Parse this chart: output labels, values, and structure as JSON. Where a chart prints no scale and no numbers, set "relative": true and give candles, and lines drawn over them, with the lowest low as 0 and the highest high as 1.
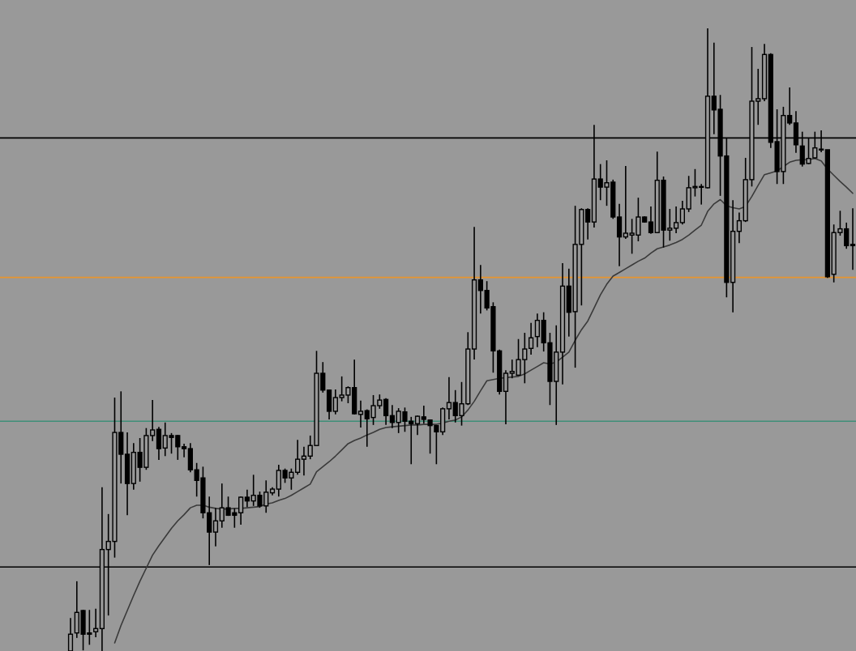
{
  "chart_data": {
    "type": "candlestick",
    "relative": true,
    "categories": [
      null,
      null,
      null,
      null,
      null,
      null,
      null,
      null,
      null,
      null,
      null,
      null,
      null,
      null,
      null,
      null,
      null,
      null,
      null,
      null,
      null,
      null,
      null,
      null,
      null,
      null,
      null,
      null,
      null,
      null,
      null,
      null,
      null,
      null,
      null,
      null,
      null,
      null,
      null,
      null,
      null,
      null,
      null,
      null,
      null,
      null,
      null,
      null,
      null,
      null,
      null,
      null,
      null,
      null,
      null,
      null,
      null,
      null,
      null,
      null,
      null,
      null,
      null,
      null,
      null,
      null,
      null,
      null,
      null,
      null,
      null,
      null,
      null,
      null,
      null,
      null,
      null,
      null,
      null,
      null,
      null,
      null,
      null,
      null,
      null,
      null,
      null,
      null,
      null,
      null,
      null,
      null,
      null,
      null,
      null,
      null,
      null,
      null,
      null,
      null,
      null,
      null,
      null,
      null,
      null,
      null,
      null,
      null,
      null,
      null,
      null,
      null,
      null,
      null,
      null,
      null,
      null,
      null,
      null,
      null,
      null,
      null,
      null,
      null,
      null
    ],
    "ref_lines": [
      {
        "axis": "y",
        "value": 0.824,
        "color": "#000000"
      },
      {
        "axis": "y",
        "value": 0.6,
        "color": "#e8952f"
      },
      {
        "axis": "y",
        "value": 0.369,
        "color": "#3f8f78"
      },
      {
        "axis": "y",
        "value": 0.135,
        "color": "#000000"
      }
    ],
    "series": [
      {
        "color": "#000000",
        "ohlc": [
          [
            0,
            0.053,
            0,
            0.027
          ],
          [
            0.029,
            0.112,
            0.021,
            0.062
          ],
          [
            0.065,
            0.066,
            0.001,
            0.027
          ],
          [
            0.029,
            0.066,
            0.01,
            0.027
          ],
          [
            0.031,
            0.068,
            0.022,
            0.036
          ],
          [
            0.036,
            0.263,
            0,
            0.163
          ],
          [
            0.163,
            0.22,
            0.057,
            0.176
          ],
          [
            0.176,
            0.407,
            0.15,
            0.351
          ],
          [
            0.351,
            0.417,
            0.269,
            0.316
          ],
          [
            0.316,
            0.351,
            0.218,
            0.269
          ],
          [
            0.269,
            0.334,
            0.259,
            0.319
          ],
          [
            0.319,
            0.342,
            0.272,
            0.295
          ],
          [
            0.295,
            0.358,
            0.291,
            0.346
          ],
          [
            0.346,
            0.403,
            0.337,
            0.355
          ],
          [
            0.356,
            0.36,
            0.307,
            0.325
          ],
          [
            0.326,
            0.367,
            0.313,
            0.346
          ],
          [
            0.346,
            0.35,
            0.317,
            0.343
          ],
          [
            0.346,
            0.347,
            0.307,
            0.328
          ],
          [
            0.328,
            0.333,
            0.311,
            0.325
          ],
          [
            0.325,
            0.334,
            0.287,
            0.291
          ],
          [
            0.291,
            0.302,
            0.248,
            0.274
          ],
          [
            0.278,
            0.296,
            0.213,
            0.222
          ],
          [
            0.222,
            0.248,
            0.138,
            0.191
          ],
          [
            0.191,
            0.23,
            0.168,
            0.209
          ],
          [
            0.209,
            0.269,
            0.198,
            0.23
          ],
          [
            0.23,
            0.248,
            0.217,
            0.218
          ],
          [
            0.222,
            0.229,
            0.198,
            0.218
          ],
          [
            0.222,
            0.248,
            0.203,
            0.247
          ],
          [
            0.247,
            0.259,
            0.231,
            0.241
          ],
          [
            0.241,
            0.283,
            0.233,
            0.25
          ],
          [
            0.25,
            0.256,
            0.23,
            0.233
          ],
          [
            0.233,
            0.274,
            0.222,
            0.255
          ],
          [
            0.254,
            0.263,
            0.25,
            0.26
          ],
          [
            0.26,
            0.299,
            0.248,
            0.29
          ],
          [
            0.29,
            0.293,
            0.27,
            0.278
          ],
          [
            0.278,
            0.293,
            0.259,
            0.287
          ],
          [
            0.287,
            0.339,
            0.283,
            0.308
          ],
          [
            0.308,
            0.328,
            0.282,
            0.313
          ],
          [
            0.313,
            0.346,
            0.308,
            0.33
          ],
          [
            0.33,
            0.482,
            0.33,
            0.446
          ],
          [
            0.446,
            0.464,
            0.415,
            0.419
          ],
          [
            0.419,
            0.42,
            0.372,
            0.385
          ],
          [
            0.385,
            0.42,
            0.38,
            0.407
          ],
          [
            0.407,
            0.441,
            0.401,
            0.411
          ],
          [
            0.411,
            0.425,
            0.398,
            0.423
          ],
          [
            0.423,
            0.468,
            0.38,
            0.381
          ],
          [
            0.38,
            0.402,
            0.359,
            0.385
          ],
          [
            0.386,
            0.388,
            0.328,
            0.373
          ],
          [
            0.375,
            0.411,
            0.363,
            0.394
          ],
          [
            0.394,
            0.412,
            0.389,
            0.403
          ],
          [
            0.404,
            0.406,
            0.363,
            0.378
          ],
          [
            0.378,
            0.395,
            0.358,
            0.367
          ],
          [
            0.367,
            0.39,
            0.35,
            0.385
          ],
          [
            0.384,
            0.391,
            0.352,
            0.369
          ],
          [
            0.369,
            0.376,
            0.3,
            0.365
          ],
          [
            0.365,
            0.378,
            0.347,
            0.377
          ],
          [
            0.376,
            0.394,
            0.365,
            0.372
          ],
          [
            0.371,
            0.372,
            0.317,
            0.362
          ],
          [
            0.362,
            0.363,
            0.3,
            0.352
          ],
          [
            0.352,
            0.391,
            0.347,
            0.389
          ],
          [
            0.389,
            0.44,
            0.372,
            0.399
          ],
          [
            0.399,
            0.419,
            0.367,
            0.378
          ],
          [
            0.378,
            0.432,
            0.362,
            0.397
          ],
          [
            0.397,
            0.512,
            0.395,
            0.485
          ],
          [
            0.485,
            0.681,
            0.468,
            0.596
          ],
          [
            0.596,
            0.62,
            0.542,
            0.579
          ],
          [
            0.579,
            0.594,
            0.547,
            0.551
          ],
          [
            0.553,
            0.56,
            0.447,
            0.482
          ],
          [
            0.482,
            0.484,
            0.412,
            0.417
          ],
          [
            0.417,
            0.451,
            0.364,
            0.446
          ],
          [
            0.446,
            0.468,
            0.438,
            0.449
          ],
          [
            0.443,
            0.501,
            0.442,
            0.468
          ],
          [
            0.468,
            0.511,
            0.43,
            0.485
          ],
          [
            0.486,
            0.527,
            0.476,
            0.503
          ],
          [
            0.505,
            0.542,
            0.488,
            0.531
          ],
          [
            0.531,
            0.544,
            0.481,
            0.495
          ],
          [
            0.495,
            0.511,
            0.395,
            0.433
          ],
          [
            0.433,
            0.523,
            0.363,
            0.48
          ],
          [
            0.48,
            0.623,
            0.428,
            0.586
          ],
          [
            0.586,
            0.614,
            0.505,
            0.544
          ],
          [
            0.545,
            0.715,
            0.455,
            0.653
          ],
          [
            0.653,
            0.711,
            0.555,
            0.709
          ],
          [
            0.709,
            0.711,
            0.661,
            0.689
          ],
          [
            0.689,
            0.845,
            0.68,
            0.758
          ],
          [
            0.758,
            0.782,
            0.724,
            0.745
          ],
          [
            0.745,
            0.788,
            0.715,
            0.752
          ],
          [
            0.753,
            0.757,
            0.694,
            0.697
          ],
          [
            0.697,
            0.718,
            0.618,
            0.665
          ],
          [
            0.665,
            0.779,
            0.662,
            0.671
          ],
          [
            0.668,
            0.694,
            0.638,
            0.671
          ],
          [
            0.668,
            0.728,
            0.658,
            0.697
          ],
          [
            0.697,
            0.698,
            0.688,
            0.689
          ],
          [
            0.689,
            0.714,
            0.67,
            0.672
          ],
          [
            0.672,
            0.802,
            0.671,
            0.756
          ],
          [
            0.756,
            0.762,
            0.648,
            0.676
          ],
          [
            0.676,
            0.71,
            0.659,
            0.679
          ],
          [
            0.679,
            0.714,
            0.671,
            0.688
          ],
          [
            0.688,
            0.723,
            0.685,
            0.71
          ],
          [
            0.71,
            0.763,
            0.705,
            0.744
          ],
          [
            0.744,
            0.774,
            0.73,
            0.746
          ],
          [
            0.745,
            0.75,
            0.717,
            0.746
          ],
          [
            0.744,
            1,
            0.743,
            0.891
          ],
          [
            0.891,
            0.977,
            0.83,
            0.869
          ],
          [
            0.87,
            0.893,
            0.731,
            0.795
          ],
          [
            0.795,
            0.824,
            0.568,
            0.592
          ],
          [
            0.592,
            0.724,
            0.544,
            0.674
          ],
          [
            0.674,
            0.704,
            0.655,
            0.691
          ],
          [
            0.691,
            0.792,
            0.689,
            0.757
          ],
          [
            0.757,
            0.97,
            0.746,
            0.883
          ],
          [
            0.883,
            0.935,
            0.845,
            0.887
          ],
          [
            0.887,
            0.975,
            0.883,
            0.958
          ],
          [
            0.958,
            0.96,
            0.808,
            0.817
          ],
          [
            0.818,
            0.87,
            0.75,
            0.77
          ],
          [
            0.77,
            0.874,
            0.75,
            0.86
          ],
          [
            0.86,
            0.905,
            0.845,
            0.848
          ],
          [
            0.848,
            0.867,
            0.8,
            0.813
          ],
          [
            0.811,
            0.834,
            0.778,
            0.782
          ],
          [
            0.783,
            0.824,
            0.782,
            0.791
          ],
          [
            0.792,
            0.834,
            0.791,
            0.808
          ],
          [
            0.806,
            0.836,
            0.801,
            0.805
          ],
          [
            0.805,
            0.805,
            0.599,
            0.601
          ],
          [
            0.605,
            0.685,
            0.592,
            0.672
          ],
          [
            0.672,
            0.707,
            0.667,
            0.678
          ],
          [
            0.678,
            0.688,
            0.646,
            0.651
          ],
          [
            0.653,
            0.711,
            0.612,
            0.651
          ]
        ]
      },
      {
        "type": "line",
        "color": "#3a3a3a",
        "values": [
          null,
          null,
          null,
          null,
          null,
          null,
          null,
          0.013,
          0.041,
          0.065,
          0.089,
          0.112,
          0.133,
          0.154,
          0.169,
          0.183,
          0.197,
          0.209,
          0.219,
          0.23,
          0.234,
          0.234,
          0.231,
          0.229,
          0.228,
          0.228,
          0.229,
          0.229,
          0.23,
          0.231,
          0.232,
          0.236,
          0.238,
          0.242,
          0.245,
          0.25,
          0.256,
          0.262,
          0.268,
          0.288,
          0.296,
          0.304,
          0.313,
          0.323,
          0.333,
          0.338,
          0.342,
          0.347,
          0.351,
          0.356,
          0.359,
          0.36,
          0.361,
          0.362,
          0.363,
          0.363,
          0.364,
          0.364,
          0.364,
          0.366,
          0.369,
          0.371,
          0.376,
          0.387,
          0.401,
          0.418,
          0.434,
          0.436,
          0.438,
          0.439,
          0.44,
          0.441,
          0.445,
          0.451,
          0.457,
          0.463,
          0.461,
          0.464,
          0.472,
          0.48,
          0.499,
          0.516,
          0.53,
          0.551,
          0.572,
          0.589,
          0.602,
          0.608,
          0.614,
          0.62,
          0.626,
          0.631,
          0.639,
          0.646,
          0.649,
          0.652,
          0.656,
          0.661,
          0.668,
          0.676,
          0.684,
          0.706,
          0.718,
          0.725,
          0.715,
          0.712,
          0.71,
          0.714,
          0.73,
          0.748,
          0.765,
          0.768,
          0.771,
          0.778,
          0.785,
          0.788,
          0.789,
          0.789,
          0.791,
          0.787,
          0.774,
          0.764,
          0.754,
          0.745,
          0.735
        ]
      }
    ]
  }
}
